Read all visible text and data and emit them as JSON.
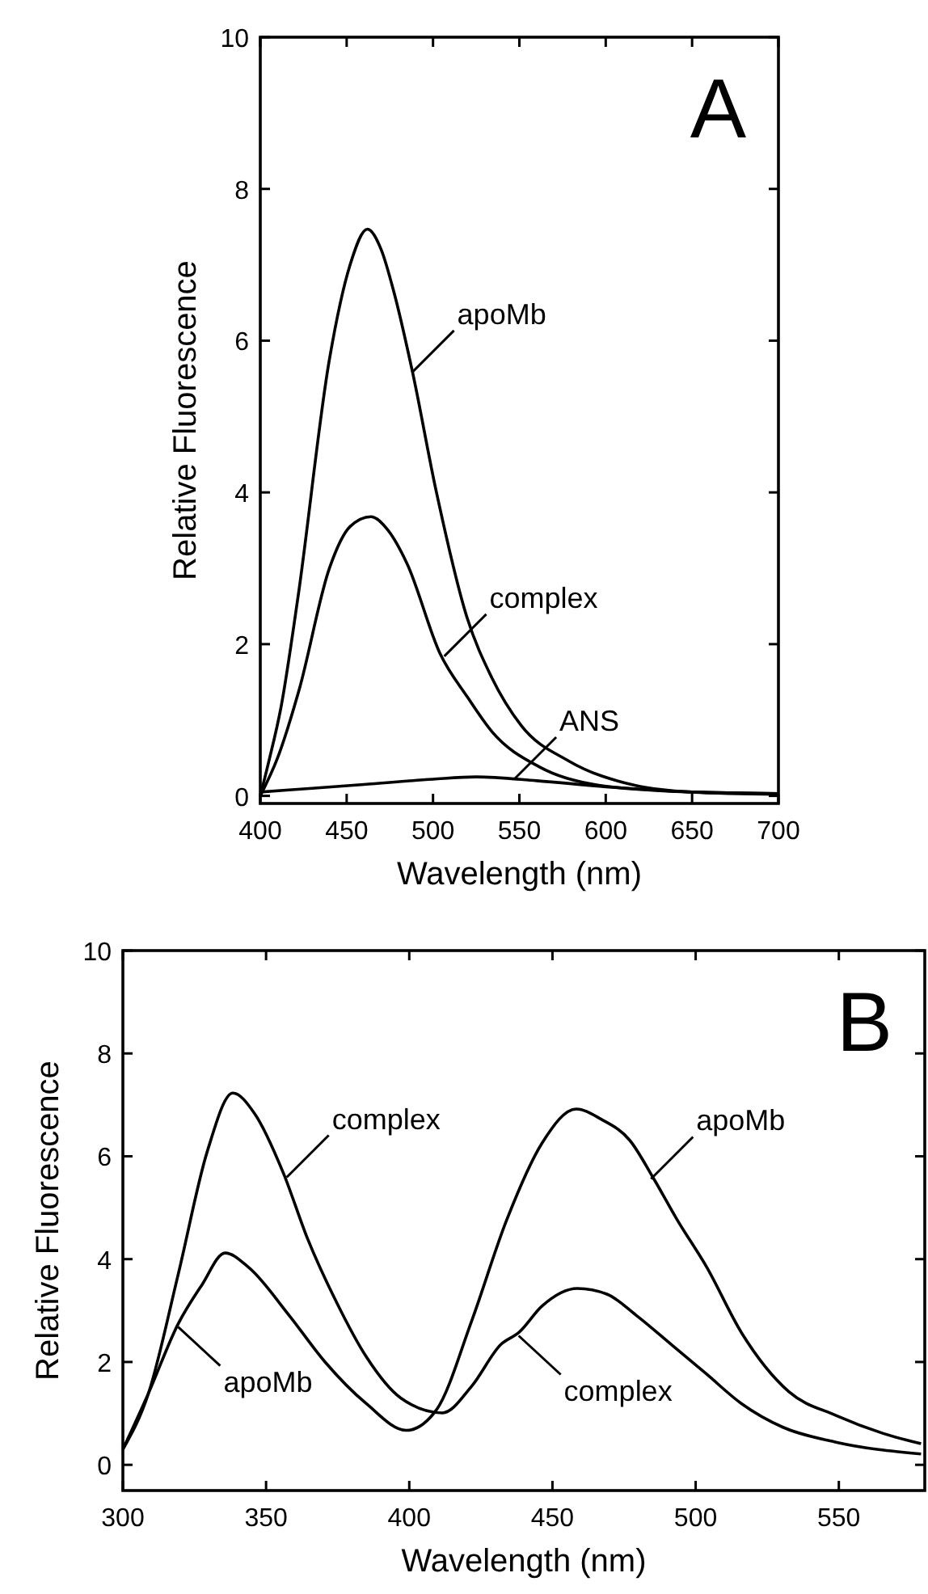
{
  "chart_data": [
    {
      "type": "line",
      "xlabel": "Wavelength  (nm)",
      "ylabel": "Relative  Fluorescence",
      "xlim": [
        400,
        700
      ],
      "ylim": [
        -0.1,
        10
      ],
      "xticks": [
        400,
        450,
        500,
        550,
        600,
        650,
        700
      ],
      "yticks": [
        0,
        2,
        4,
        6,
        8,
        10
      ],
      "series": [
        {
          "color": "#000000",
          "x": [
            400,
            405,
            412,
            421.7,
            440,
            452,
            462,
            470,
            477.6,
            488,
            502,
            519.7,
            534,
            551,
            578.6,
            616.8,
            650,
            700
          ],
          "values": [
            0.0,
            0.46,
            1.17,
            2.6,
            5.75,
            7.0,
            7.47,
            7.2,
            6.62,
            5.6,
            4.0,
            2.35,
            1.56,
            0.93,
            0.46,
            0.14,
            0.05,
            0.02
          ]
        },
        {
          "color": "#000000",
          "x": [
            400,
            410,
            422.5,
            440,
            452,
            464,
            474,
            485,
            504,
            520,
            534,
            561.7,
            596,
            650,
            700
          ],
          "values": [
            0.0,
            0.5,
            1.4,
            3.0,
            3.55,
            3.68,
            3.5,
            3.06,
            1.88,
            1.3,
            0.85,
            0.38,
            0.14,
            0.05,
            0.03
          ]
        },
        {
          "color": "#000000",
          "x": [
            400,
            430,
            460,
            500,
            525,
            560,
            600,
            650,
            700
          ],
          "values": [
            0.05,
            0.1,
            0.15,
            0.22,
            0.25,
            0.2,
            0.12,
            0.05,
            0.03
          ]
        }
      ],
      "annotations": [
        "A",
        {
          "text": "apoMb",
          "x": 487.8,
          "y": 5.58
        },
        {
          "text": "complex",
          "x": 506.5,
          "y": 1.84
        },
        {
          "text": "ANS",
          "x": 547,
          "y": 0.22
        }
      ]
    },
    {
      "type": "line",
      "xlabel": "Wavelength  (nm)",
      "ylabel": "Relative  Fluorescence",
      "xlim": [
        300,
        580
      ],
      "ylim": [
        -0.5,
        10
      ],
      "xticks": [
        300,
        350,
        400,
        450,
        500,
        550
      ],
      "yticks": [
        0,
        2,
        4,
        6,
        8,
        10
      ],
      "series": [
        {
          "color": "#000000",
          "x": [
            300,
            309,
            319.3,
            329.5,
            338.4,
            346,
            356,
            364.4,
            374.7,
            385,
            397,
            411.6,
            421.8,
            432,
            438.2,
            446.4,
            458.7,
            469,
            479.2,
            491.5,
            503.9,
            516,
            530.5,
            549,
            578.7
          ],
          "values": [
            0.3,
            1.4,
            3.7,
            6.1,
            7.23,
            6.83,
            5.68,
            4.41,
            3.15,
            2.1,
            1.3,
            1.01,
            1.53,
            2.34,
            2.57,
            3.09,
            3.43,
            3.32,
            2.91,
            2.34,
            1.76,
            1.19,
            0.73,
            0.44,
            0.21
          ]
        },
        {
          "color": "#000000",
          "x": [
            300,
            309,
            319.3,
            327.5,
            335.7,
            343.9,
            358,
            370.6,
            385,
            399,
            409.5,
            421.8,
            434,
            446.4,
            458.3,
            467,
            477,
            485.4,
            493.6,
            503.9,
            516,
            532.6,
            549,
            565.5,
            578.7
          ],
          "values": [
            0.3,
            1.4,
            2.74,
            3.49,
            4.12,
            3.84,
            2.91,
            2.0,
            1.19,
            0.67,
            1.07,
            2.8,
            4.76,
            6.26,
            6.92,
            6.72,
            6.31,
            5.56,
            4.76,
            3.84,
            2.57,
            1.42,
            0.96,
            0.61,
            0.41
          ]
        }
      ],
      "annotations": [
        "B",
        {
          "text": "complex",
          "x": 357.2,
          "y": 5.59
        },
        {
          "text": "apoMb",
          "x": 484.4,
          "y": 5.56
        },
        {
          "text": "apoMb",
          "x": 319.3,
          "y": 2.68
        },
        {
          "text": "complex",
          "x": 438.2,
          "y": 2.51
        }
      ]
    }
  ]
}
